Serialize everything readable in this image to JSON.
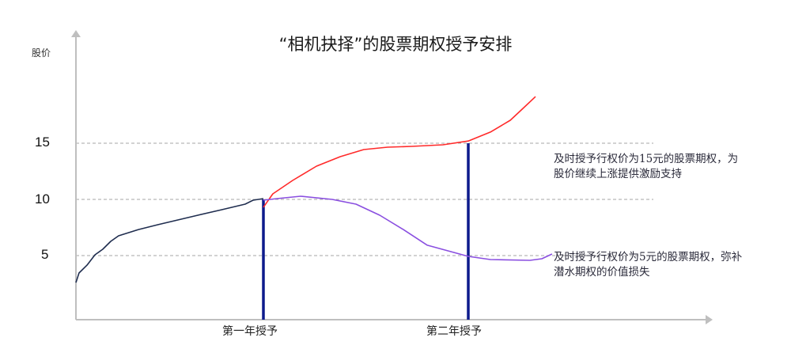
{
  "chart_data": {
    "type": "line",
    "title": "“相机抉择”的股票期权授予安排",
    "ylabel": "股价",
    "xlabel": "",
    "ylim": [
      0,
      21
    ],
    "xlim": [
      0.085,
      3.2
    ],
    "yticks": [
      5,
      10,
      15
    ],
    "grid": "dashed horizontal at 5, 10, 15",
    "x_tick_labels": [
      {
        "x": 1,
        "label": "第一年授予"
      },
      {
        "x": 2,
        "label": "第二年授予"
      }
    ],
    "grant_lines": [
      {
        "x": 1,
        "top": 10,
        "label": "第一年授予"
      },
      {
        "x": 2,
        "top": 15,
        "label": "第二年授予"
      }
    ],
    "series": [
      {
        "color": "#1f2d4f",
        "points": [
          [
            0.085,
            2.6
          ],
          [
            0.1,
            3.45
          ],
          [
            0.139,
            4.15
          ],
          [
            0.178,
            5.07
          ],
          [
            0.216,
            5.56
          ],
          [
            0.255,
            6.27
          ],
          [
            0.293,
            6.76
          ],
          [
            0.39,
            7.32
          ],
          [
            0.486,
            7.75
          ],
          [
            0.68,
            8.59
          ],
          [
            0.795,
            9.08
          ],
          [
            0.911,
            9.58
          ],
          [
            0.95,
            9.93
          ],
          [
            1.0,
            10.07
          ]
        ]
      },
      {
        "color": "#ff2a2a",
        "points": [
          [
            1.0,
            9.3
          ],
          [
            1.046,
            10.49
          ],
          [
            1.143,
            11.69
          ],
          [
            1.259,
            12.96
          ],
          [
            1.375,
            13.8
          ],
          [
            1.49,
            14.44
          ],
          [
            1.606,
            14.65
          ],
          [
            1.722,
            14.72
          ],
          [
            1.876,
            14.86
          ],
          [
            2.0,
            15.2
          ],
          [
            2.108,
            15.99
          ],
          [
            2.205,
            17.04
          ],
          [
            2.263,
            18.03
          ],
          [
            2.328,
            19.15
          ]
        ]
      },
      {
        "color": "#8a4fe0",
        "points": [
          [
            1.0,
            9.93
          ],
          [
            1.066,
            10.07
          ],
          [
            1.181,
            10.28
          ],
          [
            1.336,
            10.0
          ],
          [
            1.452,
            9.58
          ],
          [
            1.568,
            8.59
          ],
          [
            1.683,
            7.32
          ],
          [
            1.8,
            5.92
          ],
          [
            1.915,
            5.35
          ],
          [
            2.0,
            4.93
          ],
          [
            2.108,
            4.65
          ],
          [
            2.301,
            4.58
          ],
          [
            2.359,
            4.72
          ],
          [
            2.409,
            5.14
          ]
        ]
      }
    ],
    "annotations": [
      "及时授予行权价为15元的股票期权，为股价继续上涨提供激励支持",
      "及时授予行权价为5元的股票期权，弥补潜水期权的价值损失"
    ],
    "colors": {
      "axis": "#bfbfbf",
      "grid": "#a6a6a6",
      "grant_line": "#0d1a8c"
    }
  }
}
